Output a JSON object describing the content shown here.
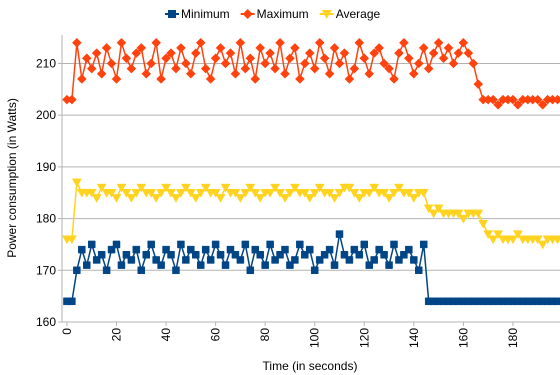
{
  "chart_data": {
    "type": "line",
    "xlabel": "Time (in seconds)",
    "ylabel": "Power consumption (in Watts)",
    "x": [
      0,
      2,
      4,
      6,
      8,
      10,
      12,
      14,
      16,
      18,
      20,
      22,
      24,
      26,
      28,
      30,
      32,
      34,
      36,
      38,
      40,
      42,
      44,
      46,
      48,
      50,
      52,
      54,
      56,
      58,
      60,
      62,
      64,
      66,
      68,
      70,
      72,
      74,
      76,
      78,
      80,
      82,
      84,
      86,
      88,
      90,
      92,
      94,
      96,
      98,
      100,
      102,
      104,
      106,
      108,
      110,
      112,
      114,
      116,
      118,
      120,
      122,
      124,
      126,
      128,
      130,
      132,
      134,
      136,
      138,
      140,
      142,
      144,
      146,
      148,
      150,
      152,
      154,
      156,
      158,
      160,
      162,
      164,
      166,
      168,
      170,
      172,
      174,
      176,
      178,
      180,
      182,
      184,
      186,
      188,
      190,
      192,
      194,
      196,
      198
    ],
    "series": [
      {
        "name": "Minimum",
        "color": "#004586",
        "marker": "square",
        "values": [
          164,
          164,
          170,
          174,
          171,
          175,
          172,
          173,
          170,
          174,
          175,
          171,
          173,
          172,
          174,
          170,
          173,
          175,
          172,
          171,
          174,
          173,
          170,
          175,
          172,
          174,
          173,
          171,
          174,
          172,
          175,
          173,
          171,
          174,
          173,
          172,
          175,
          170,
          174,
          173,
          171,
          175,
          172,
          173,
          174,
          171,
          172,
          175,
          173,
          174,
          170,
          172,
          173,
          174,
          171,
          177,
          173,
          172,
          174,
          173,
          175,
          171,
          172,
          174,
          173,
          171,
          175,
          172,
          173,
          174,
          172,
          170,
          175,
          164,
          164,
          164,
          164,
          164,
          164,
          164,
          164,
          164,
          164,
          164,
          164,
          164,
          164,
          164,
          164,
          164,
          164,
          164,
          164,
          164,
          164,
          164,
          164,
          164,
          164,
          164
        ]
      },
      {
        "name": "Maximum",
        "color": "#ff420e",
        "marker": "diamond",
        "values": [
          203,
          203,
          214,
          207,
          211,
          209,
          212,
          208,
          213,
          210,
          207,
          214,
          211,
          209,
          212,
          213,
          208,
          210,
          214,
          207,
          211,
          212,
          209,
          213,
          210,
          208,
          212,
          214,
          209,
          207,
          211,
          213,
          210,
          212,
          208,
          214,
          209,
          211,
          207,
          213,
          210,
          212,
          209,
          214,
          208,
          211,
          213,
          207,
          210,
          212,
          209,
          214,
          211,
          208,
          213,
          210,
          212,
          207,
          209,
          214,
          211,
          208,
          212,
          213,
          210,
          209,
          207,
          212,
          214,
          211,
          208,
          210,
          213,
          209,
          212,
          214,
          211,
          213,
          210,
          212,
          214,
          212,
          210,
          206,
          203,
          203,
          203,
          202,
          203,
          203,
          203,
          202,
          203,
          203,
          203,
          203,
          202,
          203,
          203,
          203
        ]
      },
      {
        "name": "Average",
        "color": "#ffd320",
        "marker": "triangle-down",
        "values": [
          176,
          176,
          187,
          185,
          185,
          185,
          184,
          186,
          185,
          185,
          184,
          186,
          185,
          184,
          185,
          186,
          185,
          185,
          184,
          185,
          186,
          185,
          184,
          185,
          186,
          185,
          184,
          185,
          186,
          185,
          185,
          184,
          186,
          185,
          185,
          184,
          185,
          186,
          185,
          184,
          185,
          185,
          186,
          185,
          184,
          185,
          186,
          185,
          185,
          184,
          185,
          186,
          185,
          185,
          184,
          185,
          186,
          186,
          185,
          184,
          185,
          185,
          186,
          185,
          185,
          184,
          185,
          186,
          185,
          185,
          184,
          185,
          185,
          182,
          181,
          182,
          181,
          181,
          181,
          181,
          180,
          181,
          181,
          181,
          179,
          177,
          176,
          177,
          176,
          176,
          176,
          177,
          176,
          176,
          176,
          176,
          175,
          176,
          176,
          176
        ]
      }
    ],
    "xlim": [
      -2,
      199
    ],
    "ylim": [
      160,
      215.5
    ],
    "xticks": [
      0,
      20,
      40,
      60,
      80,
      100,
      120,
      140,
      160,
      180
    ],
    "yticks": [
      160,
      170,
      180,
      190,
      200,
      210
    ],
    "grid": true,
    "legend": "top"
  }
}
